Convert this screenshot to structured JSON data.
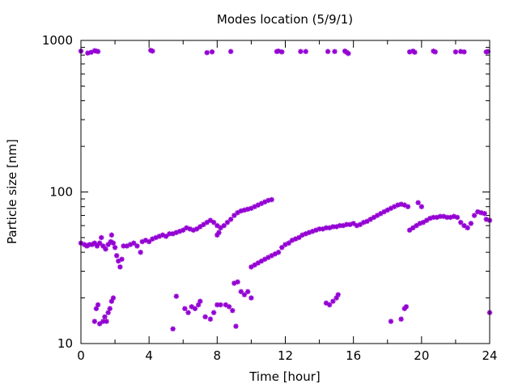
{
  "chart_data": {
    "type": "scatter",
    "title": "Modes location (5/9/1)",
    "xlabel": "Time [hour]",
    "ylabel": "Particle size [nm]",
    "xlim": [
      0,
      24
    ],
    "ylim": [
      10,
      1000
    ],
    "yscale": "log",
    "grid": false,
    "legend": "none",
    "x_ticks": [
      0,
      4,
      8,
      12,
      16,
      20,
      24
    ],
    "x_tick_labels": [
      "0",
      "4",
      "8",
      "12",
      "16",
      "20",
      "24"
    ],
    "y_ticks": [
      10,
      100,
      1000
    ],
    "y_tick_labels": [
      "10",
      "100",
      "1000"
    ],
    "marker_color": "#9400d3",
    "series": [
      {
        "name": "",
        "points": [
          [
            0.0,
            850
          ],
          [
            0.4,
            825
          ],
          [
            0.6,
            835
          ],
          [
            0.8,
            855
          ],
          [
            0.9,
            850
          ],
          [
            1.0,
            845
          ],
          [
            4.1,
            860
          ],
          [
            4.2,
            850
          ],
          [
            7.4,
            830
          ],
          [
            7.7,
            840
          ],
          [
            8.8,
            845
          ],
          [
            11.5,
            845
          ],
          [
            11.6,
            850
          ],
          [
            11.8,
            840
          ],
          [
            12.9,
            845
          ],
          [
            13.2,
            845
          ],
          [
            14.5,
            845
          ],
          [
            14.9,
            845
          ],
          [
            15.5,
            850
          ],
          [
            15.6,
            835
          ],
          [
            15.7,
            820
          ],
          [
            19.3,
            840
          ],
          [
            19.5,
            850
          ],
          [
            19.6,
            835
          ],
          [
            20.7,
            850
          ],
          [
            20.8,
            840
          ],
          [
            22.0,
            840
          ],
          [
            22.3,
            845
          ],
          [
            22.5,
            840
          ],
          [
            23.8,
            840
          ],
          [
            23.9,
            845
          ],
          [
            0.0,
            46
          ],
          [
            0.2,
            45
          ],
          [
            0.35,
            44
          ],
          [
            0.5,
            45
          ],
          [
            0.65,
            45
          ],
          [
            0.8,
            46
          ],
          [
            0.95,
            44
          ],
          [
            1.1,
            46
          ],
          [
            1.2,
            50
          ],
          [
            1.3,
            44
          ],
          [
            1.45,
            42
          ],
          [
            1.6,
            45
          ],
          [
            1.75,
            47
          ],
          [
            1.8,
            52
          ],
          [
            1.9,
            46
          ],
          [
            2.0,
            43
          ],
          [
            2.1,
            38
          ],
          [
            2.2,
            35
          ],
          [
            2.3,
            32
          ],
          [
            2.4,
            36
          ],
          [
            2.5,
            44
          ],
          [
            2.7,
            44
          ],
          [
            2.9,
            45
          ],
          [
            3.1,
            46
          ],
          [
            3.3,
            44
          ],
          [
            3.5,
            40
          ],
          [
            3.6,
            47
          ],
          [
            3.8,
            48
          ],
          [
            4.0,
            47
          ],
          [
            4.2,
            49
          ],
          [
            4.4,
            50
          ],
          [
            4.6,
            51
          ],
          [
            4.8,
            52
          ],
          [
            5.0,
            51
          ],
          [
            5.2,
            53
          ],
          [
            5.4,
            53
          ],
          [
            5.6,
            54
          ],
          [
            5.8,
            55
          ],
          [
            6.0,
            56
          ],
          [
            6.2,
            58
          ],
          [
            6.4,
            57
          ],
          [
            6.6,
            56
          ],
          [
            6.8,
            57
          ],
          [
            7.0,
            59
          ],
          [
            7.2,
            61
          ],
          [
            7.4,
            63
          ],
          [
            7.6,
            65
          ],
          [
            7.8,
            63
          ],
          [
            8.0,
            60
          ],
          [
            8.2,
            58
          ],
          [
            8.4,
            60
          ],
          [
            8.6,
            63
          ],
          [
            8.8,
            66
          ],
          [
            9.0,
            70
          ],
          [
            9.2,
            73
          ],
          [
            9.4,
            75
          ],
          [
            9.6,
            76
          ],
          [
            9.8,
            77
          ],
          [
            10.0,
            78
          ],
          [
            10.2,
            80
          ],
          [
            10.4,
            82
          ],
          [
            10.6,
            84
          ],
          [
            10.8,
            86
          ],
          [
            11.0,
            88
          ],
          [
            11.2,
            89
          ],
          [
            8.0,
            52
          ],
          [
            8.1,
            54
          ],
          [
            10.0,
            32
          ],
          [
            10.2,
            33
          ],
          [
            10.4,
            34
          ],
          [
            10.6,
            35
          ],
          [
            10.8,
            36
          ],
          [
            11.0,
            37
          ],
          [
            11.2,
            38
          ],
          [
            11.4,
            39
          ],
          [
            11.6,
            40
          ],
          [
            11.8,
            43
          ],
          [
            12.0,
            45
          ],
          [
            12.2,
            46
          ],
          [
            12.4,
            48
          ],
          [
            12.6,
            49
          ],
          [
            12.8,
            50
          ],
          [
            13.0,
            52
          ],
          [
            13.2,
            53
          ],
          [
            13.4,
            54
          ],
          [
            13.6,
            55
          ],
          [
            13.8,
            56
          ],
          [
            14.0,
            57
          ],
          [
            14.2,
            57
          ],
          [
            14.4,
            58
          ],
          [
            14.6,
            58
          ],
          [
            14.8,
            59
          ],
          [
            15.0,
            59
          ],
          [
            15.2,
            60
          ],
          [
            15.4,
            60
          ],
          [
            15.6,
            61
          ],
          [
            15.8,
            61
          ],
          [
            16.0,
            62
          ],
          [
            16.2,
            60
          ],
          [
            16.4,
            61
          ],
          [
            16.6,
            63
          ],
          [
            16.8,
            64
          ],
          [
            17.0,
            66
          ],
          [
            17.2,
            68
          ],
          [
            17.4,
            70
          ],
          [
            17.6,
            72
          ],
          [
            17.8,
            74
          ],
          [
            18.0,
            76
          ],
          [
            18.2,
            78
          ],
          [
            18.4,
            80
          ],
          [
            18.6,
            82
          ],
          [
            18.8,
            83
          ],
          [
            19.0,
            82
          ],
          [
            19.2,
            80
          ],
          [
            19.3,
            56
          ],
          [
            19.5,
            58
          ],
          [
            19.7,
            60
          ],
          [
            19.9,
            62
          ],
          [
            20.1,
            63
          ],
          [
            20.3,
            65
          ],
          [
            20.5,
            67
          ],
          [
            20.7,
            68
          ],
          [
            20.9,
            68
          ],
          [
            21.1,
            69
          ],
          [
            21.3,
            69
          ],
          [
            21.5,
            68
          ],
          [
            21.7,
            68
          ],
          [
            21.9,
            69
          ],
          [
            22.1,
            68
          ],
          [
            22.3,
            63
          ],
          [
            22.5,
            60
          ],
          [
            22.7,
            58
          ],
          [
            22.9,
            62
          ],
          [
            23.1,
            70
          ],
          [
            23.3,
            74
          ],
          [
            23.5,
            73
          ],
          [
            23.7,
            72
          ],
          [
            23.8,
            66
          ],
          [
            24.0,
            65
          ],
          [
            19.8,
            85
          ],
          [
            20.0,
            80
          ],
          [
            0.8,
            14
          ],
          [
            0.9,
            17
          ],
          [
            1.0,
            18
          ],
          [
            1.1,
            13.5
          ],
          [
            1.3,
            14
          ],
          [
            1.4,
            15
          ],
          [
            1.5,
            14
          ],
          [
            1.6,
            16
          ],
          [
            1.7,
            17
          ],
          [
            1.8,
            19
          ],
          [
            1.9,
            20
          ],
          [
            5.4,
            12.5
          ],
          [
            5.6,
            20.5
          ],
          [
            6.1,
            17
          ],
          [
            6.3,
            16
          ],
          [
            6.5,
            17.5
          ],
          [
            6.7,
            17
          ],
          [
            6.9,
            18
          ],
          [
            7.0,
            19
          ],
          [
            7.3,
            15
          ],
          [
            7.6,
            14.5
          ],
          [
            7.8,
            16
          ],
          [
            8.0,
            18
          ],
          [
            8.2,
            18
          ],
          [
            8.5,
            18
          ],
          [
            8.7,
            17.5
          ],
          [
            8.9,
            16.5
          ],
          [
            9.1,
            13
          ],
          [
            9.0,
            25
          ],
          [
            9.2,
            25.5
          ],
          [
            9.4,
            22
          ],
          [
            9.6,
            21
          ],
          [
            9.8,
            22
          ],
          [
            10.0,
            20
          ],
          [
            14.4,
            18.5
          ],
          [
            14.6,
            18
          ],
          [
            14.8,
            19
          ],
          [
            15.0,
            20
          ],
          [
            15.1,
            21
          ],
          [
            18.2,
            14
          ],
          [
            18.8,
            14.5
          ],
          [
            19.0,
            17
          ],
          [
            19.1,
            17.5
          ],
          [
            24.0,
            16
          ]
        ]
      }
    ]
  }
}
